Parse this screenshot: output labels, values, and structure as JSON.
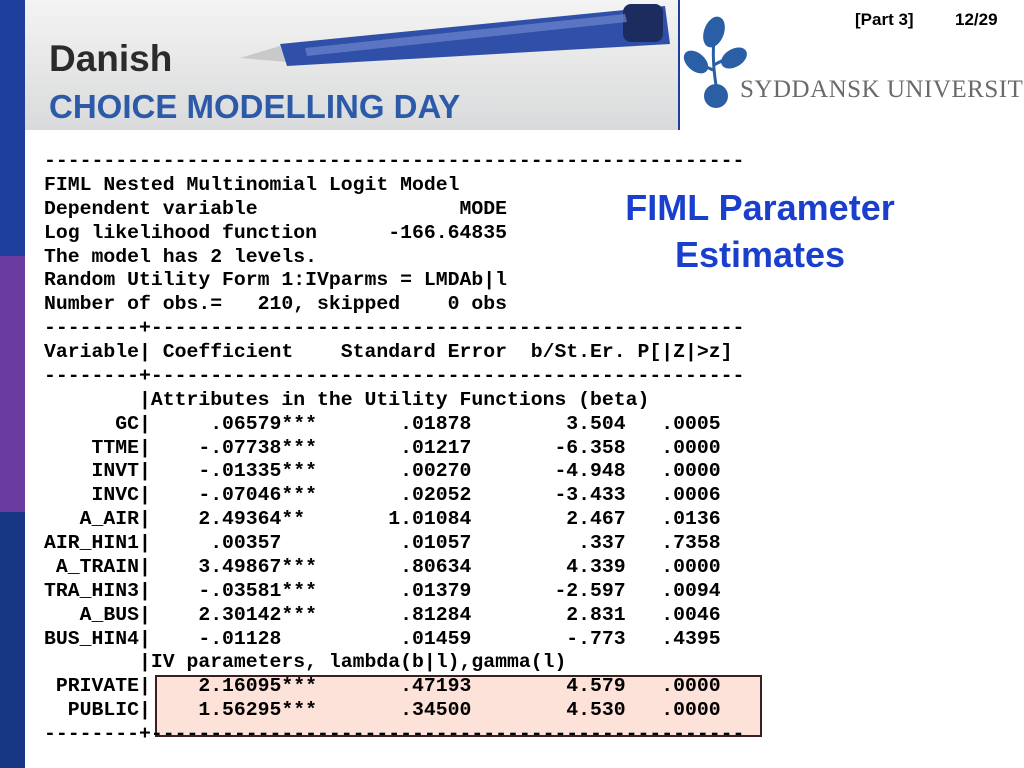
{
  "header": {
    "title_line1": "Danish",
    "title_line2": "CHOICE MODELLING DAY",
    "logo_text": "SYDDANSK UNIVERSITET"
  },
  "slide": {
    "part": "[Part 3]",
    "page": "12/29",
    "title": "FIML Parameter Estimates"
  },
  "output": {
    "lines": [
      "-----------------------------------------------------------",
      "FIML Nested Multinomial Logit Model",
      "Dependent variable                 MODE",
      "Log likelihood function      -166.64835",
      "The model has 2 levels.",
      "Random Utility Form 1:IVparms = LMDAb|l",
      "Number of obs.=   210, skipped    0 obs",
      "--------+--------------------------------------------------",
      "Variable| Coefficient    Standard Error  b/St.Er. P[|Z|>z]",
      "--------+--------------------------------------------------",
      "        |Attributes in the Utility Functions (beta)",
      "      GC|     .06579***       .01878        3.504   .0005",
      "    TTME|    -.07738***       .01217       -6.358   .0000",
      "    INVT|    -.01335***       .00270       -4.948   .0000",
      "    INVC|    -.07046***       .02052       -3.433   .0006",
      "   A_AIR|    2.49364**       1.01084        2.467   .0136",
      "AIR_HIN1|     .00357          .01057         .337   .7358",
      " A_TRAIN|    3.49867***       .80634        4.339   .0000",
      "TRA_HIN3|    -.03581***       .01379       -2.597   .0094",
      "   A_BUS|    2.30142***       .81284        2.831   .0046",
      "BUS_HIN4|    -.01128          .01459        -.773   .4395",
      "        |IV parameters, lambda(b|l),gamma(l)",
      " PRIVATE|    2.16095***       .47193        4.579   .0000",
      "  PUBLIC|    1.56295***       .34500        4.530   .0000",
      "--------+--------------------------------------------------"
    ]
  }
}
